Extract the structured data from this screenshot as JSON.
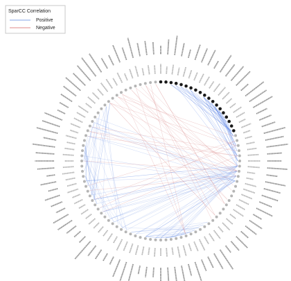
{
  "legend": {
    "title": "SparCC Correlation",
    "items": [
      {
        "label": "Positive",
        "color": "#9db8ee"
      },
      {
        "label": "Negative",
        "color": "#e7a0a0"
      }
    ]
  },
  "colors": {
    "positive_edge": "#6d93e6",
    "positive_edge_dense": "#3f6fe0",
    "negative_edge": "#d98a8a",
    "node_black": "#1a1a1a",
    "node_grey": "#b5b5b5",
    "label_grey": "#555555"
  },
  "network": {
    "node_count": 96,
    "highlighted_nodes": "black nodes in the upper-right arc",
    "node_labels": "illegible tiny taxa names arranged radially"
  }
}
